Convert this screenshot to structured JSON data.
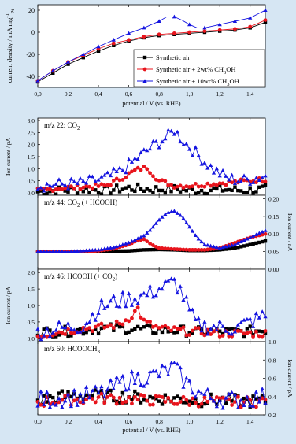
{
  "background_color": "#d6e6f3",
  "series_colors": {
    "synthetic_air": "#000000",
    "meoh_2": "#e8141c",
    "meoh_10": "#1414e0"
  },
  "chart_data": [
    {
      "type": "line",
      "panel": "cv",
      "ylabel": "current density / mA mg",
      "ylabel_sup": "-1",
      "ylabel_sub": "Pt",
      "xlabel": "potential / V (vs. RHE)",
      "xlim": [
        0.0,
        1.5
      ],
      "ylim": [
        -50,
        25
      ],
      "yticks": [
        "-40",
        "-20",
        "0",
        "20"
      ],
      "xticks": [
        "0,0",
        "0,2",
        "0,4",
        "0,6",
        "0,8",
        "1,0",
        "1,2",
        "1,4"
      ],
      "legend_position": "bottom-right",
      "legend": [
        {
          "text": "Synthetic air",
          "sub": "",
          "after": ""
        },
        {
          "text": "Synthetic air + 2wt% CH",
          "sub": "3",
          "after": "OH"
        },
        {
          "text": "Synthetic air + 10wt% CH",
          "sub": "3",
          "after": "OH"
        }
      ],
      "series": [
        {
          "key": "synthetic_air",
          "marker": "square",
          "x": [
            0.0,
            0.1,
            0.2,
            0.3,
            0.4,
            0.5,
            0.6,
            0.7,
            0.8,
            0.9,
            1.0,
            1.1,
            1.2,
            1.3,
            1.4,
            1.5
          ],
          "y": [
            -45,
            -37,
            -29,
            -23,
            -17,
            -12,
            -8,
            -5,
            -3,
            -2,
            -1,
            0,
            1,
            2,
            4,
            9
          ]
        },
        {
          "key": "meoh_2",
          "marker": "circle",
          "x": [
            0.0,
            0.1,
            0.2,
            0.3,
            0.4,
            0.5,
            0.6,
            0.7,
            0.8,
            0.9,
            1.0,
            1.1,
            1.2,
            1.3,
            1.4,
            1.5
          ],
          "y": [
            -44,
            -35,
            -27,
            -21,
            -15,
            -10,
            -7,
            -4,
            -2,
            -1,
            0,
            1,
            2,
            3,
            5,
            11
          ]
        },
        {
          "key": "meoh_10",
          "marker": "triangle",
          "x": [
            0.0,
            0.1,
            0.2,
            0.3,
            0.4,
            0.5,
            0.6,
            0.7,
            0.8,
            0.85,
            0.9,
            0.95,
            1.0,
            1.05,
            1.1,
            1.2,
            1.3,
            1.4,
            1.5
          ],
          "y": [
            -44,
            -35,
            -27,
            -20,
            -13,
            -7,
            -1,
            4,
            10,
            14,
            14,
            11,
            7,
            4,
            4,
            7,
            10,
            13,
            20
          ]
        }
      ]
    },
    {
      "type": "line",
      "panel": "ms22",
      "label_text": "m/z 22: CO",
      "label_sub": "2",
      "label_after": "",
      "ylabel_left": "Ion current / pA",
      "xlim": [
        0.0,
        1.5
      ],
      "ylim": [
        -0.1,
        3.1
      ],
      "yticks_left": [
        "0,0",
        "0,5",
        "1,0",
        "1,5",
        "2,0",
        "2,5",
        "3,0"
      ],
      "series": [
        {
          "key": "synthetic_air",
          "marker": "square",
          "x": [
            0.0,
            0.15,
            0.3,
            0.45,
            0.6,
            0.75,
            0.9,
            1.05,
            1.2,
            1.35,
            1.5
          ],
          "y": [
            0.05,
            0.1,
            0.15,
            0.1,
            0.2,
            0.15,
            0.15,
            0.1,
            0.15,
            0.1,
            0.15
          ],
          "noise": 0.18
        },
        {
          "key": "meoh_2",
          "marker": "circle",
          "x": [
            0.0,
            0.15,
            0.3,
            0.45,
            0.55,
            0.65,
            0.72,
            0.8,
            0.9,
            1.0,
            1.1,
            1.2,
            1.3,
            1.4,
            1.5
          ],
          "y": [
            0.1,
            0.2,
            0.25,
            0.3,
            0.6,
            0.95,
            1.05,
            0.5,
            0.3,
            0.3,
            0.35,
            0.4,
            0.45,
            0.5,
            0.55
          ],
          "noise": 0.1
        },
        {
          "key": "meoh_10",
          "marker": "triangle",
          "x": [
            0.0,
            0.15,
            0.3,
            0.45,
            0.55,
            0.65,
            0.75,
            0.85,
            0.9,
            0.95,
            1.05,
            1.15,
            1.25,
            1.35,
            1.5
          ],
          "y": [
            0.3,
            0.35,
            0.4,
            0.6,
            0.9,
            1.4,
            1.9,
            2.3,
            2.6,
            2.2,
            1.6,
            1.0,
            0.6,
            0.5,
            0.7
          ],
          "noise": 0.25
        }
      ]
    },
    {
      "type": "line",
      "panel": "ms44",
      "label_text": "m/z 44: CO",
      "label_sub": "2",
      "label_after": " (+ HCOOH)",
      "ylabel_right": "Ion current / nA",
      "xlim": [
        0.0,
        1.5
      ],
      "ylim": [
        0.0,
        0.21
      ],
      "yticks_right": [
        "0,00",
        "0,05",
        "0,10",
        "0,15",
        "0,20"
      ],
      "series": [
        {
          "key": "synthetic_air",
          "marker": "square",
          "x": [
            0.0,
            0.2,
            0.4,
            0.6,
            0.7,
            0.8,
            0.9,
            1.0,
            1.1,
            1.2,
            1.3,
            1.4,
            1.5
          ],
          "y": [
            0.05,
            0.05,
            0.05,
            0.052,
            0.055,
            0.056,
            0.055,
            0.053,
            0.053,
            0.055,
            0.06,
            0.07,
            0.08
          ],
          "noise": 0.0
        },
        {
          "key": "meoh_2",
          "marker": "circle",
          "x": [
            0.0,
            0.2,
            0.4,
            0.5,
            0.6,
            0.65,
            0.7,
            0.75,
            0.8,
            0.9,
            1.0,
            1.1,
            1.2,
            1.3,
            1.4,
            1.5
          ],
          "y": [
            0.05,
            0.05,
            0.052,
            0.058,
            0.07,
            0.08,
            0.085,
            0.07,
            0.06,
            0.057,
            0.055,
            0.055,
            0.06,
            0.075,
            0.09,
            0.1
          ],
          "noise": 0.0
        },
        {
          "key": "meoh_10",
          "marker": "triangle",
          "x": [
            0.0,
            0.2,
            0.4,
            0.5,
            0.6,
            0.7,
            0.75,
            0.8,
            0.85,
            0.9,
            0.95,
            1.0,
            1.05,
            1.1,
            1.2,
            1.3,
            1.4,
            1.5
          ],
          "y": [
            0.05,
            0.05,
            0.055,
            0.062,
            0.075,
            0.095,
            0.115,
            0.14,
            0.16,
            0.165,
            0.15,
            0.12,
            0.09,
            0.07,
            0.06,
            0.07,
            0.09,
            0.11
          ],
          "noise": 0.0
        }
      ]
    },
    {
      "type": "line",
      "panel": "ms46",
      "label_text": "m/z 46: HCOOH (+ CO",
      "label_sub": "2",
      "label_after": ")",
      "ylabel_left": "Ion current / pA",
      "xlim": [
        0.0,
        1.5
      ],
      "ylim": [
        -0.1,
        2.1
      ],
      "yticks_left": [
        "0,0",
        "0,5",
        "1,0",
        "1,5",
        "2,0"
      ],
      "series": [
        {
          "key": "synthetic_air",
          "marker": "square",
          "x": [
            0.0,
            0.15,
            0.3,
            0.45,
            0.6,
            0.75,
            0.9,
            1.05,
            1.2,
            1.35,
            1.5
          ],
          "y": [
            0.2,
            0.2,
            0.25,
            0.3,
            0.3,
            0.25,
            0.25,
            0.2,
            0.2,
            0.2,
            0.25
          ],
          "noise": 0.15
        },
        {
          "key": "meoh_2",
          "marker": "circle",
          "x": [
            0.0,
            0.15,
            0.3,
            0.45,
            0.55,
            0.62,
            0.66,
            0.7,
            0.8,
            0.9,
            1.0,
            1.1,
            1.2,
            1.35,
            1.5
          ],
          "y": [
            0.1,
            0.2,
            0.3,
            0.35,
            0.45,
            0.7,
            0.9,
            0.5,
            0.3,
            0.25,
            0.2,
            0.2,
            0.15,
            0.15,
            0.15
          ],
          "noise": 0.12
        },
        {
          "key": "meoh_10",
          "marker": "triangle",
          "x": [
            0.0,
            0.15,
            0.3,
            0.4,
            0.5,
            0.6,
            0.7,
            0.8,
            0.9,
            0.95,
            1.0,
            1.05,
            1.15,
            1.3,
            1.5
          ],
          "y": [
            0.2,
            0.3,
            0.4,
            0.9,
            1.1,
            1.2,
            1.3,
            1.5,
            1.7,
            1.4,
            0.8,
            0.4,
            0.35,
            0.3,
            0.7
          ],
          "noise": 0.25
        }
      ]
    },
    {
      "type": "line",
      "panel": "ms60",
      "label_text": "m/z 60: HCOOCH",
      "label_sub": "3",
      "label_after": "",
      "ylabel_right": "Ion current / pA",
      "xlabel": "potential / V (vs. RHE)",
      "xlim": [
        0.0,
        1.5
      ],
      "ylim": [
        0.2,
        1.0
      ],
      "yticks_right": [
        "0,2",
        "0,4",
        "0,6",
        "0,8",
        "1,0"
      ],
      "xticks": [
        "0,0",
        "0,2",
        "0,4",
        "0,6",
        "0,8",
        "1,0",
        "1,2",
        "1,4"
      ],
      "series": [
        {
          "key": "synthetic_air",
          "marker": "square",
          "x": [
            0.0,
            0.15,
            0.3,
            0.45,
            0.6,
            0.75,
            0.9,
            1.05,
            1.2,
            1.35,
            1.5
          ],
          "y": [
            0.35,
            0.4,
            0.42,
            0.4,
            0.4,
            0.38,
            0.38,
            0.36,
            0.36,
            0.35,
            0.35
          ],
          "noise": 0.07
        },
        {
          "key": "meoh_2",
          "marker": "circle",
          "x": [
            0.0,
            0.15,
            0.3,
            0.45,
            0.6,
            0.75,
            0.9,
            1.05,
            1.2,
            1.35,
            1.5
          ],
          "y": [
            0.34,
            0.36,
            0.37,
            0.38,
            0.37,
            0.36,
            0.35,
            0.35,
            0.34,
            0.34,
            0.35
          ],
          "noise": 0.06
        },
        {
          "key": "meoh_10",
          "marker": "triangle",
          "x": [
            0.0,
            0.15,
            0.3,
            0.45,
            0.55,
            0.65,
            0.75,
            0.85,
            0.9,
            0.95,
            1.05,
            1.15,
            1.3,
            1.5
          ],
          "y": [
            0.36,
            0.38,
            0.4,
            0.45,
            0.55,
            0.6,
            0.62,
            0.68,
            0.72,
            0.6,
            0.45,
            0.38,
            0.36,
            0.4
          ],
          "noise": 0.1
        }
      ]
    }
  ]
}
